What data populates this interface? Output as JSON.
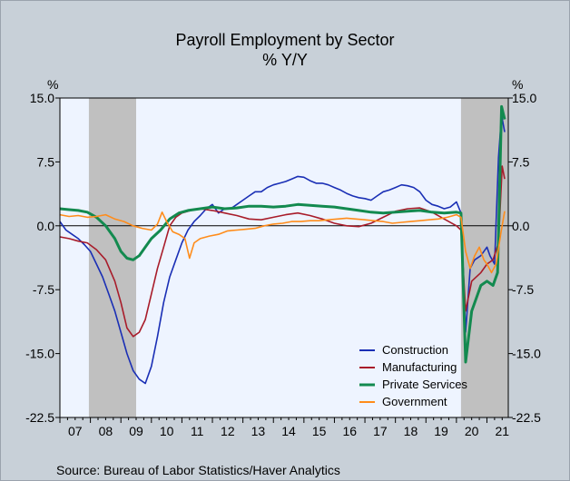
{
  "title": "Payroll Employment by Sector",
  "subtitle": "% Y/Y",
  "source": "Source:  Bureau of Labor Statistics/Haver Analytics",
  "chart_data": {
    "type": "line",
    "ylabel_left": "%",
    "ylabel_right": "%",
    "ylim": [
      -22.5,
      15.0
    ],
    "yticks": [
      15.0,
      7.5,
      0.0,
      -7.5,
      -15.0,
      -22.5
    ],
    "ytick_labels": [
      "15.0",
      "7.5",
      "0.0",
      "-7.5",
      "-15.0",
      "-22.5"
    ],
    "xlim": [
      2007.0,
      2021.7
    ],
    "xtick_labels": [
      "07",
      "08",
      "09",
      "10",
      "11",
      "12",
      "13",
      "14",
      "15",
      "16",
      "17",
      "18",
      "19",
      "20",
      "21"
    ],
    "recessions": [
      [
        2007.95,
        2009.5
      ],
      [
        2020.15,
        2021.7
      ]
    ],
    "legend_position": "bottom-right",
    "colors": {
      "plot_bg": "#eef4ff",
      "recession": "#c0c0c0",
      "Construction": "#1a2fb5",
      "Manufacturing": "#a81c2a",
      "Private Services": "#138a4f",
      "Government": "#ff8c1a"
    },
    "series": [
      {
        "name": "Construction",
        "points": [
          [
            2007.0,
            0.5
          ],
          [
            2007.2,
            -0.5
          ],
          [
            2007.4,
            -1.0
          ],
          [
            2007.6,
            -1.5
          ],
          [
            2007.8,
            -2.2
          ],
          [
            2008.0,
            -3.0
          ],
          [
            2008.2,
            -4.5
          ],
          [
            2008.4,
            -6.0
          ],
          [
            2008.6,
            -8.0
          ],
          [
            2008.8,
            -10.0
          ],
          [
            2009.0,
            -12.5
          ],
          [
            2009.2,
            -15.0
          ],
          [
            2009.4,
            -17.0
          ],
          [
            2009.6,
            -18.0
          ],
          [
            2009.8,
            -18.5
          ],
          [
            2010.0,
            -16.5
          ],
          [
            2010.2,
            -13.0
          ],
          [
            2010.4,
            -9.0
          ],
          [
            2010.6,
            -6.0
          ],
          [
            2010.8,
            -4.0
          ],
          [
            2011.0,
            -2.0
          ],
          [
            2011.2,
            -0.5
          ],
          [
            2011.4,
            0.5
          ],
          [
            2011.6,
            1.2
          ],
          [
            2011.8,
            2.0
          ],
          [
            2012.0,
            2.5
          ],
          [
            2012.2,
            1.5
          ],
          [
            2012.4,
            2.0
          ],
          [
            2012.6,
            2.0
          ],
          [
            2012.8,
            2.5
          ],
          [
            2013.0,
            3.0
          ],
          [
            2013.2,
            3.5
          ],
          [
            2013.4,
            4.0
          ],
          [
            2013.6,
            4.0
          ],
          [
            2013.8,
            4.5
          ],
          [
            2014.0,
            4.8
          ],
          [
            2014.2,
            5.0
          ],
          [
            2014.4,
            5.2
          ],
          [
            2014.6,
            5.5
          ],
          [
            2014.8,
            5.8
          ],
          [
            2015.0,
            5.7
          ],
          [
            2015.2,
            5.3
          ],
          [
            2015.4,
            5.0
          ],
          [
            2015.6,
            5.0
          ],
          [
            2015.8,
            4.8
          ],
          [
            2016.0,
            4.5
          ],
          [
            2016.2,
            4.2
          ],
          [
            2016.4,
            3.8
          ],
          [
            2016.6,
            3.5
          ],
          [
            2016.8,
            3.3
          ],
          [
            2017.0,
            3.2
          ],
          [
            2017.2,
            3.0
          ],
          [
            2017.4,
            3.5
          ],
          [
            2017.6,
            4.0
          ],
          [
            2017.8,
            4.2
          ],
          [
            2018.0,
            4.5
          ],
          [
            2018.2,
            4.8
          ],
          [
            2018.4,
            4.7
          ],
          [
            2018.6,
            4.5
          ],
          [
            2018.8,
            4.0
          ],
          [
            2019.0,
            3.0
          ],
          [
            2019.2,
            2.5
          ],
          [
            2019.4,
            2.3
          ],
          [
            2019.6,
            2.0
          ],
          [
            2019.8,
            2.2
          ],
          [
            2020.0,
            2.8
          ],
          [
            2020.15,
            1.5
          ],
          [
            2020.3,
            -12.5
          ],
          [
            2020.45,
            -5.0
          ],
          [
            2020.6,
            -4.0
          ],
          [
            2020.8,
            -3.5
          ],
          [
            2021.0,
            -2.5
          ],
          [
            2021.1,
            -3.5
          ],
          [
            2021.25,
            -4.5
          ],
          [
            2021.38,
            8.0
          ],
          [
            2021.48,
            13.0
          ],
          [
            2021.58,
            11.0
          ]
        ]
      },
      {
        "name": "Manufacturing",
        "points": [
          [
            2007.0,
            -1.3
          ],
          [
            2007.3,
            -1.5
          ],
          [
            2007.6,
            -1.8
          ],
          [
            2007.9,
            -2.0
          ],
          [
            2008.2,
            -2.8
          ],
          [
            2008.5,
            -4.0
          ],
          [
            2008.8,
            -6.5
          ],
          [
            2009.0,
            -9.0
          ],
          [
            2009.2,
            -12.0
          ],
          [
            2009.4,
            -13.0
          ],
          [
            2009.6,
            -12.5
          ],
          [
            2009.8,
            -11.0
          ],
          [
            2010.0,
            -8.0
          ],
          [
            2010.2,
            -5.0
          ],
          [
            2010.4,
            -2.5
          ],
          [
            2010.6,
            0.0
          ],
          [
            2010.8,
            1.0
          ],
          [
            2011.0,
            1.5
          ],
          [
            2011.3,
            1.8
          ],
          [
            2011.6,
            2.0
          ],
          [
            2012.0,
            1.8
          ],
          [
            2012.4,
            1.5
          ],
          [
            2012.8,
            1.2
          ],
          [
            2013.2,
            0.8
          ],
          [
            2013.6,
            0.7
          ],
          [
            2014.0,
            1.0
          ],
          [
            2014.4,
            1.3
          ],
          [
            2014.8,
            1.5
          ],
          [
            2015.2,
            1.2
          ],
          [
            2015.6,
            0.8
          ],
          [
            2016.0,
            0.3
          ],
          [
            2016.4,
            0.0
          ],
          [
            2016.8,
            -0.1
          ],
          [
            2017.2,
            0.3
          ],
          [
            2017.6,
            1.0
          ],
          [
            2018.0,
            1.7
          ],
          [
            2018.4,
            2.0
          ],
          [
            2018.8,
            2.1
          ],
          [
            2019.2,
            1.6
          ],
          [
            2019.6,
            0.8
          ],
          [
            2020.0,
            0.0
          ],
          [
            2020.15,
            -0.5
          ],
          [
            2020.3,
            -10.0
          ],
          [
            2020.5,
            -6.5
          ],
          [
            2020.8,
            -5.5
          ],
          [
            2021.0,
            -4.5
          ],
          [
            2021.2,
            -4.0
          ],
          [
            2021.38,
            -2.0
          ],
          [
            2021.5,
            7.0
          ],
          [
            2021.58,
            5.5
          ]
        ]
      },
      {
        "name": "Private Services",
        "points": [
          [
            2007.0,
            2.0
          ],
          [
            2007.3,
            1.9
          ],
          [
            2007.6,
            1.8
          ],
          [
            2007.9,
            1.6
          ],
          [
            2008.2,
            1.0
          ],
          [
            2008.5,
            0.0
          ],
          [
            2008.8,
            -1.5
          ],
          [
            2009.0,
            -3.0
          ],
          [
            2009.2,
            -3.8
          ],
          [
            2009.4,
            -4.0
          ],
          [
            2009.6,
            -3.5
          ],
          [
            2009.8,
            -2.5
          ],
          [
            2010.0,
            -1.5
          ],
          [
            2010.3,
            -0.5
          ],
          [
            2010.6,
            0.8
          ],
          [
            2010.9,
            1.5
          ],
          [
            2011.2,
            1.8
          ],
          [
            2011.6,
            2.0
          ],
          [
            2012.0,
            2.2
          ],
          [
            2012.4,
            2.0
          ],
          [
            2012.8,
            2.1
          ],
          [
            2013.2,
            2.3
          ],
          [
            2013.6,
            2.3
          ],
          [
            2014.0,
            2.2
          ],
          [
            2014.4,
            2.3
          ],
          [
            2014.8,
            2.5
          ],
          [
            2015.2,
            2.4
          ],
          [
            2015.6,
            2.3
          ],
          [
            2016.0,
            2.2
          ],
          [
            2016.4,
            2.0
          ],
          [
            2016.8,
            1.8
          ],
          [
            2017.2,
            1.6
          ],
          [
            2017.6,
            1.5
          ],
          [
            2018.0,
            1.6
          ],
          [
            2018.4,
            1.7
          ],
          [
            2018.8,
            1.8
          ],
          [
            2019.2,
            1.6
          ],
          [
            2019.6,
            1.5
          ],
          [
            2020.0,
            1.6
          ],
          [
            2020.15,
            1.5
          ],
          [
            2020.3,
            -16.0
          ],
          [
            2020.5,
            -10.0
          ],
          [
            2020.8,
            -7.0
          ],
          [
            2021.0,
            -6.5
          ],
          [
            2021.2,
            -7.0
          ],
          [
            2021.35,
            -5.5
          ],
          [
            2021.48,
            14.0
          ],
          [
            2021.58,
            12.5
          ]
        ]
      },
      {
        "name": "Government",
        "points": [
          [
            2007.0,
            1.3
          ],
          [
            2007.3,
            1.1
          ],
          [
            2007.6,
            1.2
          ],
          [
            2007.9,
            1.0
          ],
          [
            2008.2,
            1.1
          ],
          [
            2008.5,
            1.3
          ],
          [
            2008.8,
            0.8
          ],
          [
            2009.1,
            0.5
          ],
          [
            2009.4,
            0.0
          ],
          [
            2009.7,
            -0.3
          ],
          [
            2010.0,
            -0.5
          ],
          [
            2010.2,
            0.2
          ],
          [
            2010.35,
            1.6
          ],
          [
            2010.5,
            0.5
          ],
          [
            2010.7,
            -0.7
          ],
          [
            2010.9,
            -1.0
          ],
          [
            2011.1,
            -1.5
          ],
          [
            2011.25,
            -3.8
          ],
          [
            2011.4,
            -2.0
          ],
          [
            2011.6,
            -1.5
          ],
          [
            2011.9,
            -1.2
          ],
          [
            2012.2,
            -1.0
          ],
          [
            2012.5,
            -0.6
          ],
          [
            2012.8,
            -0.5
          ],
          [
            2013.1,
            -0.4
          ],
          [
            2013.4,
            -0.3
          ],
          [
            2013.7,
            0.0
          ],
          [
            2014.0,
            0.2
          ],
          [
            2014.3,
            0.3
          ],
          [
            2014.6,
            0.5
          ],
          [
            2014.9,
            0.5
          ],
          [
            2015.2,
            0.6
          ],
          [
            2015.5,
            0.6
          ],
          [
            2015.8,
            0.7
          ],
          [
            2016.1,
            0.8
          ],
          [
            2016.4,
            0.9
          ],
          [
            2016.7,
            0.8
          ],
          [
            2017.0,
            0.7
          ],
          [
            2017.3,
            0.6
          ],
          [
            2017.6,
            0.5
          ],
          [
            2017.9,
            0.3
          ],
          [
            2018.2,
            0.4
          ],
          [
            2018.5,
            0.5
          ],
          [
            2018.8,
            0.6
          ],
          [
            2019.1,
            0.7
          ],
          [
            2019.4,
            0.8
          ],
          [
            2019.7,
            1.0
          ],
          [
            2020.0,
            1.3
          ],
          [
            2020.15,
            1.0
          ],
          [
            2020.3,
            -3.0
          ],
          [
            2020.45,
            -5.0
          ],
          [
            2020.6,
            -3.5
          ],
          [
            2020.75,
            -2.5
          ],
          [
            2020.9,
            -4.0
          ],
          [
            2021.0,
            -4.5
          ],
          [
            2021.15,
            -5.5
          ],
          [
            2021.3,
            -4.5
          ],
          [
            2021.45,
            -1.0
          ],
          [
            2021.58,
            1.7
          ]
        ]
      }
    ]
  }
}
